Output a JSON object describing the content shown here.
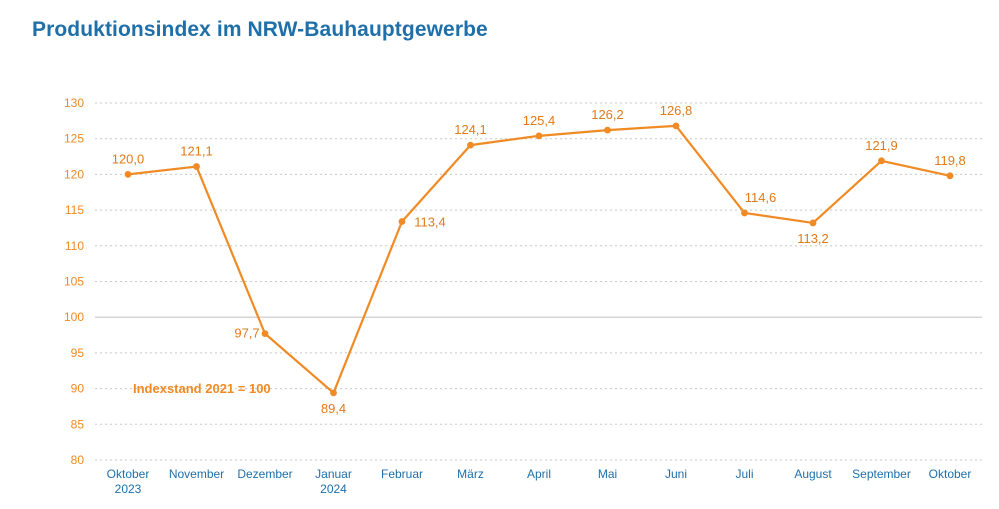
{
  "chart_data": {
    "type": "line",
    "title": "Produktionsindex im NRW-Bauhauptgewerbe",
    "xlabel": "",
    "ylabel": "",
    "ylim": [
      80,
      130
    ],
    "yticks": [
      130,
      125,
      120,
      115,
      110,
      105,
      100,
      95,
      90,
      85,
      80
    ],
    "grid": true,
    "reference_line": 100,
    "annotation": "Indexstand 2021 = 100",
    "categories": [
      [
        "Oktober",
        "2023"
      ],
      [
        "November"
      ],
      [
        "Dezember"
      ],
      [
        "Januar",
        "2024"
      ],
      [
        "Februar"
      ],
      [
        "März"
      ],
      [
        "April"
      ],
      [
        "Mai"
      ],
      [
        "Juni"
      ],
      [
        "Juli"
      ],
      [
        "August"
      ],
      [
        "September"
      ],
      [
        "Oktober"
      ]
    ],
    "values": [
      120.0,
      121.1,
      97.7,
      89.4,
      113.4,
      124.1,
      125.4,
      126.2,
      126.8,
      114.6,
      113.2,
      121.9,
      119.8
    ],
    "value_labels": [
      "120,0",
      "121,1",
      "97,7",
      "89,4",
      "113,4",
      "124,1",
      "125,4",
      "126,2",
      "126,8",
      "114,6",
      "113,2",
      "121,9",
      "119,8"
    ],
    "colors": {
      "line": "#f08a24",
      "axis_text_y": "#f08a24",
      "axis_text_x": "#1f6fa8",
      "title": "#1f6fa8",
      "grid": "#c8c8c8"
    }
  }
}
